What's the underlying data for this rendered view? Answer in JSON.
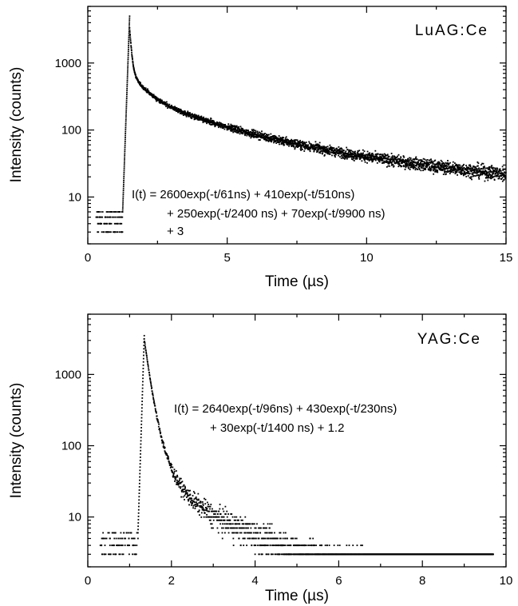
{
  "chart_data": [
    {
      "type": "scatter",
      "title": "LuAG:Ce",
      "xlabel": "Time (µs)",
      "ylabel": "Intensity (counts)",
      "xlim": [
        0,
        15
      ],
      "ylim": [
        2,
        7000
      ],
      "yscale": "log",
      "grid": false,
      "x_ticks": [
        "0",
        "5",
        "10",
        "15"
      ],
      "x_tick_values": [
        0,
        5,
        10,
        15
      ],
      "y_ticks": [
        "10",
        "100",
        "1000"
      ],
      "y_tick_values": [
        10,
        100,
        1000
      ],
      "annotation": [
        "I(t) = 2600exp(-t/61ns) + 410exp(-t/510ns)",
        "+ 250exp(-t/2400 ns) + 70exp(-t/9900 ns)",
        "+ 3"
      ],
      "fit": {
        "onset_us": 1.25,
        "peak_us": 1.5,
        "components": [
          {
            "amplitude": 2600,
            "tau_ns": 61
          },
          {
            "amplitude": 410,
            "tau_ns": 510
          },
          {
            "amplitude": 250,
            "tau_ns": 2400
          },
          {
            "amplitude": 70,
            "tau_ns": 9900
          }
        ],
        "offset": 3
      },
      "baseline_levels": [
        3,
        4,
        5,
        6
      ],
      "peak_counts": 5000
    },
    {
      "type": "scatter",
      "title": "YAG:Ce",
      "xlabel": "Time (µs)",
      "ylabel": "Intensity (counts)",
      "xlim": [
        0,
        10
      ],
      "ylim": [
        2,
        7000
      ],
      "yscale": "log",
      "grid": false,
      "x_ticks": [
        "0",
        "2",
        "4",
        "6",
        "8",
        "10"
      ],
      "x_tick_values": [
        0,
        2,
        4,
        6,
        8,
        10
      ],
      "y_ticks": [
        "10",
        "100",
        "1000"
      ],
      "y_tick_values": [
        10,
        100,
        1000
      ],
      "annotation": [
        "I(t) = 2640exp(-t/96ns) + 430exp(-t/230ns)",
        "+ 30exp(-t/1400 ns) + 1.2"
      ],
      "fit": {
        "onset_us": 1.2,
        "peak_us": 1.35,
        "components": [
          {
            "amplitude": 2640,
            "tau_ns": 96
          },
          {
            "amplitude": 430,
            "tau_ns": 230
          },
          {
            "amplitude": 30,
            "tau_ns": 1400
          }
        ],
        "offset": 1.2
      },
      "baseline_levels": [
        3,
        4,
        5,
        6
      ],
      "peak_counts": 3500,
      "data_end_us": 9.7
    }
  ]
}
